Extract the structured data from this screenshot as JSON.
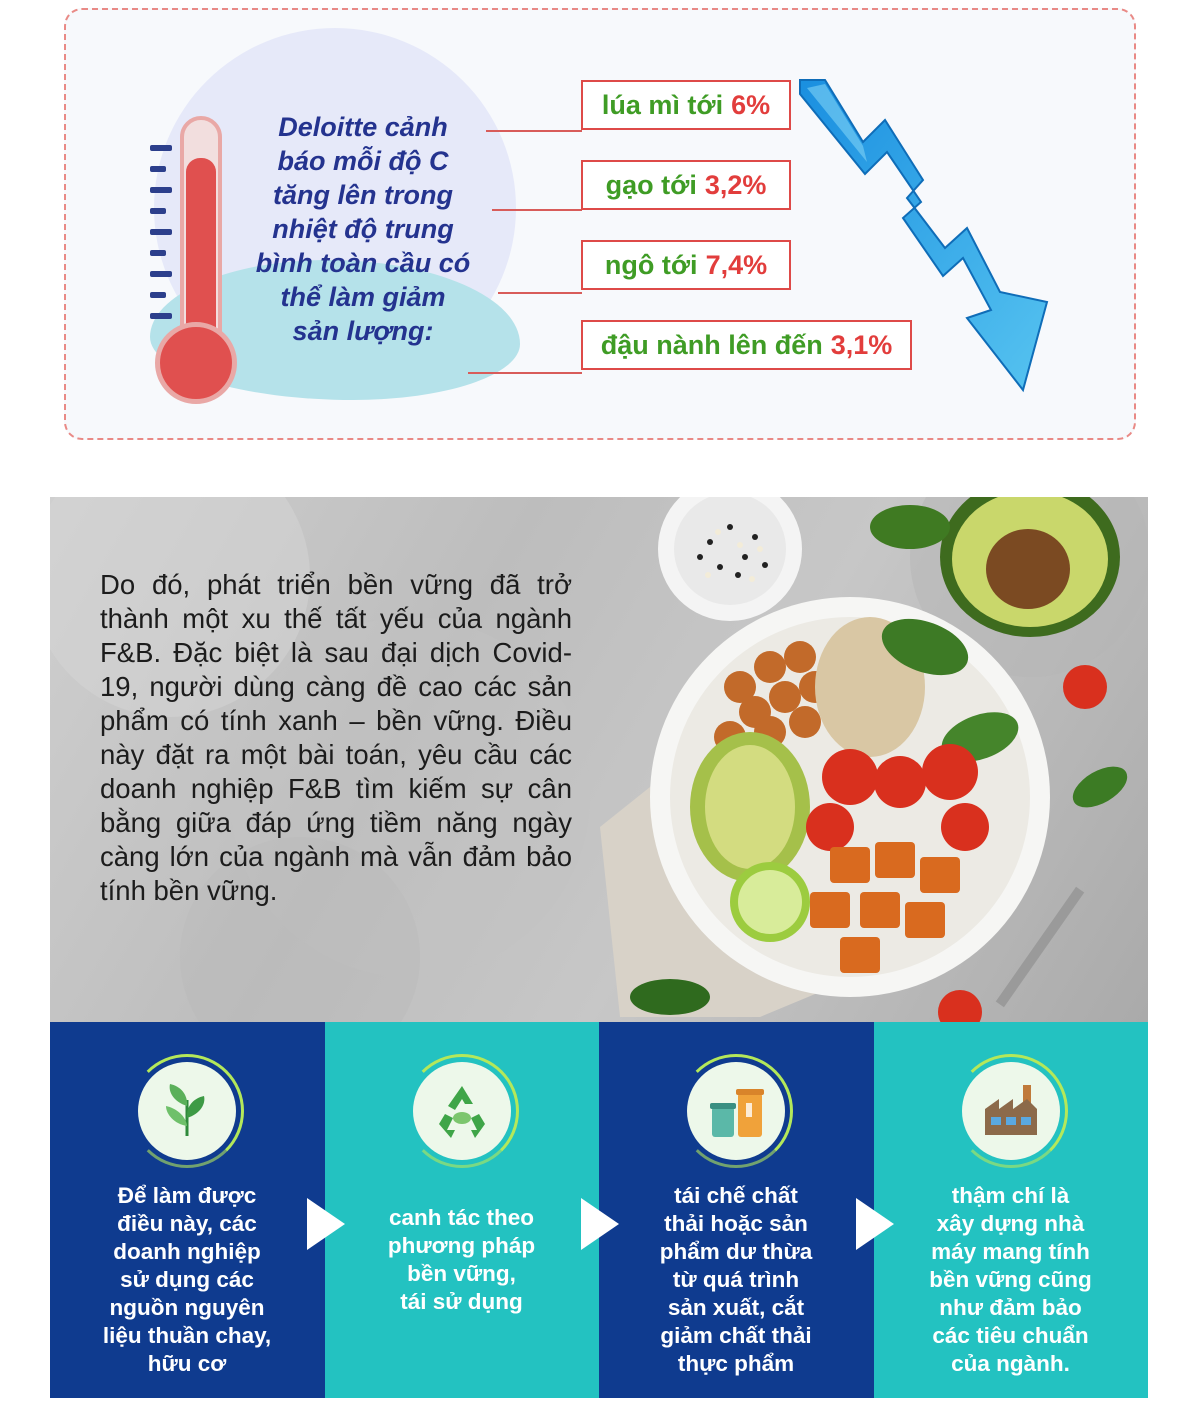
{
  "colors": {
    "navy": "#24338f",
    "green": "#3f9c25",
    "red": "#e23d3c",
    "dark_blue": "#0f3b8f",
    "teal": "#23c2c1",
    "arrow_blue": "#3aa7e8"
  },
  "infographic": {
    "headline": "Deloitte cảnh báo mỗi độ C tăng lên trong nhiệt độ trung bình toàn cầu có thể làm giảm sản lượng:",
    "headline_lines": [
      "Deloitte cảnh",
      "báo mỗi độ C",
      "tăng lên trong",
      "nhiệt độ trung",
      "bình toàn cầu có",
      "thể làm giảm",
      "sản lượng:"
    ],
    "crops": [
      {
        "name": "lúa mì tới",
        "value": "6%"
      },
      {
        "name": "gạo tới",
        "value": "3,2%"
      },
      {
        "name": "ngô tới",
        "value": "7,4%"
      },
      {
        "name": "đậu nành lên đến",
        "value": "3,1%"
      }
    ],
    "icons": [
      "thermometer-icon",
      "down-trend-arrow-icon"
    ]
  },
  "article": {
    "paragraph": "Do đó, phát triển bền vững đã trở thành một xu thế tất yếu của ngành F&B. Đặc biệt là sau đại dịch Covid-19, người dùng càng đề cao các sản phẩm có tính xanh – bền vững. Điều này đặt ra một bài toán, yêu cầu các doanh nghiệp F&B tìm kiếm sự cân bằng giữa đáp ứng tiềm năng ngày càng lớn của ngành mà vẫn đảm bảo tính bền vững."
  },
  "steps": [
    {
      "icon": "leaf-icon",
      "lines": [
        "Để làm được",
        "điều này, các",
        "doanh nghiệp",
        "sử dụng các",
        "nguồn nguyên",
        "liệu thuần chay,",
        "hữu cơ"
      ]
    },
    {
      "icon": "recycle-icon",
      "lines": [
        "canh tác theo",
        "phương pháp",
        "bền vững,",
        "tái sử dụng"
      ]
    },
    {
      "icon": "recycle-bins-icon",
      "lines": [
        "tái chế chất",
        "thải hoặc sản",
        "phẩm dư thừa",
        "từ quá trình",
        "sản xuất, cắt",
        "giảm chất thải",
        "thực phẩm"
      ]
    },
    {
      "icon": "factory-icon",
      "lines": [
        "thậm chí là",
        "xây dựng nhà",
        "máy mang tính",
        "bền vững cũng",
        "như đảm bảo",
        "các tiêu chuẩn",
        "của ngành."
      ]
    }
  ]
}
